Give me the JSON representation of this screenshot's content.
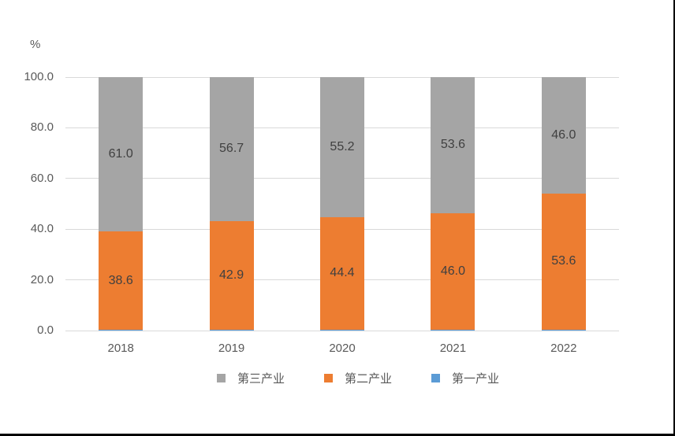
{
  "chart_data": {
    "type": "bar",
    "stacked": true,
    "title": "",
    "xlabel": "",
    "ylabel": "%",
    "categories": [
      "2018",
      "2019",
      "2020",
      "2021",
      "2022"
    ],
    "series": [
      {
        "name": "第一产业",
        "color": "#5b9bd5",
        "values": [
          0.4,
          0.4,
          0.4,
          0.4,
          0.4
        ],
        "labels": [
          "",
          "",
          "",
          "",
          ""
        ]
      },
      {
        "name": "第二产业",
        "color": "#ed7d31",
        "values": [
          38.6,
          42.9,
          44.4,
          46.0,
          53.6
        ],
        "labels": [
          "38.6",
          "42.9",
          "44.4",
          "46.0",
          "53.6"
        ]
      },
      {
        "name": "第三产业",
        "color": "#a5a5a5",
        "values": [
          61.0,
          56.7,
          55.2,
          53.6,
          46.0
        ],
        "labels": [
          "61.0",
          "56.7",
          "55.2",
          "53.6",
          "46.0"
        ]
      }
    ],
    "ylim": [
      0,
      100
    ],
    "y_ticks": [
      {
        "value": 100,
        "label": "100.0"
      },
      {
        "value": 80,
        "label": "80.0"
      },
      {
        "value": 60,
        "label": "60.0"
      },
      {
        "value": 40,
        "label": "40.0"
      },
      {
        "value": 20,
        "label": "20.0"
      },
      {
        "value": 0,
        "label": "0.0"
      }
    ],
    "grid": true,
    "legend_position": "bottom",
    "legend": [
      {
        "label": "第三产业",
        "color": "#a5a5a5"
      },
      {
        "label": "第二产业",
        "color": "#ed7d31"
      },
      {
        "label": "第一产业",
        "color": "#5b9bd5"
      }
    ]
  },
  "colors": {
    "background": "#ffffff",
    "grid_line": "#d9d9d9",
    "axis_text": "#595959",
    "data_label_text": "#404040",
    "page_border": "#000000"
  }
}
